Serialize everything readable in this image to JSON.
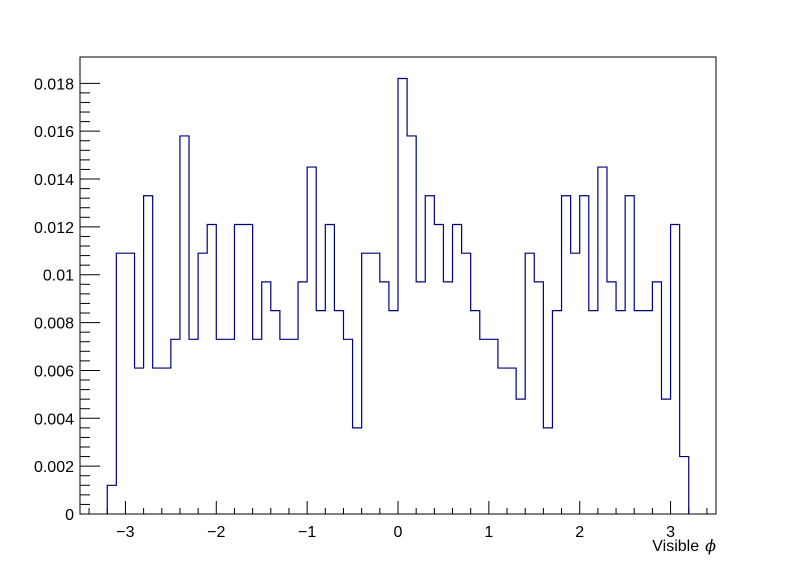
{
  "chart_data": {
    "type": "histogram",
    "title": "",
    "xlabel": "Visible",
    "xlabel_symbol": "ϕ",
    "ylabel": "",
    "xlim": [
      -3.5,
      3.5
    ],
    "ylim": [
      0,
      0.0191
    ],
    "grid": false,
    "legend": "none",
    "line_color": "#000080",
    "x_ticks": [
      {
        "value": -3,
        "label": "−3"
      },
      {
        "value": -2,
        "label": "−2"
      },
      {
        "value": -1,
        "label": "−1"
      },
      {
        "value": 0,
        "label": "0"
      },
      {
        "value": 1,
        "label": "1"
      },
      {
        "value": 2,
        "label": "2"
      },
      {
        "value": 3,
        "label": "3"
      }
    ],
    "y_ticks": [
      {
        "value": 0,
        "label": "0"
      },
      {
        "value": 0.002,
        "label": "0.002"
      },
      {
        "value": 0.004,
        "label": "0.004"
      },
      {
        "value": 0.006,
        "label": "0.006"
      },
      {
        "value": 0.008,
        "label": "0.008"
      },
      {
        "value": 0.01,
        "label": "0.01"
      },
      {
        "value": 0.012,
        "label": "0.012"
      },
      {
        "value": 0.014,
        "label": "0.014"
      },
      {
        "value": 0.016,
        "label": "0.016"
      },
      {
        "value": 0.018,
        "label": "0.018"
      }
    ],
    "bin_edges": [
      -3.2,
      -3.1,
      -2.9,
      -2.8,
      -2.7,
      -2.5,
      -2.4,
      -2.3,
      -2.2,
      -2.1,
      -2.0,
      -1.8,
      -1.6,
      -1.5,
      -1.4,
      -1.3,
      -1.1,
      -1.0,
      -0.9,
      -0.8,
      -0.7,
      -0.6,
      -0.5,
      -0.4,
      -0.2,
      -0.1,
      0.0,
      0.1,
      0.2,
      0.3,
      0.4,
      0.5,
      0.6,
      0.7,
      0.8,
      0.9,
      1.1,
      1.3,
      1.4,
      1.5,
      1.6,
      1.7,
      1.8,
      1.9,
      2.0,
      2.1,
      2.2,
      2.3,
      2.4,
      2.5,
      2.6,
      2.8,
      2.9,
      3.0,
      3.1,
      3.2
    ],
    "values": [
      0.0012,
      0.0109,
      0.0061,
      0.0133,
      0.0061,
      0.0073,
      0.0158,
      0.0073,
      0.0109,
      0.0121,
      0.0073,
      0.0121,
      0.0073,
      0.0097,
      0.0085,
      0.0073,
      0.0097,
      0.0145,
      0.0085,
      0.0121,
      0.0085,
      0.0073,
      0.0036,
      0.0109,
      0.0097,
      0.0085,
      0.0182,
      0.0158,
      0.0097,
      0.0133,
      0.0121,
      0.0097,
      0.0121,
      0.0109,
      0.0085,
      0.0073,
      0.0061,
      0.0048,
      0.0109,
      0.0097,
      0.0036,
      0.0085,
      0.0133,
      0.0109,
      0.0133,
      0.0085,
      0.0145,
      0.0097,
      0.0085,
      0.0133,
      0.0085,
      0.0097,
      0.0048,
      0.0121,
      0.0024
    ]
  }
}
